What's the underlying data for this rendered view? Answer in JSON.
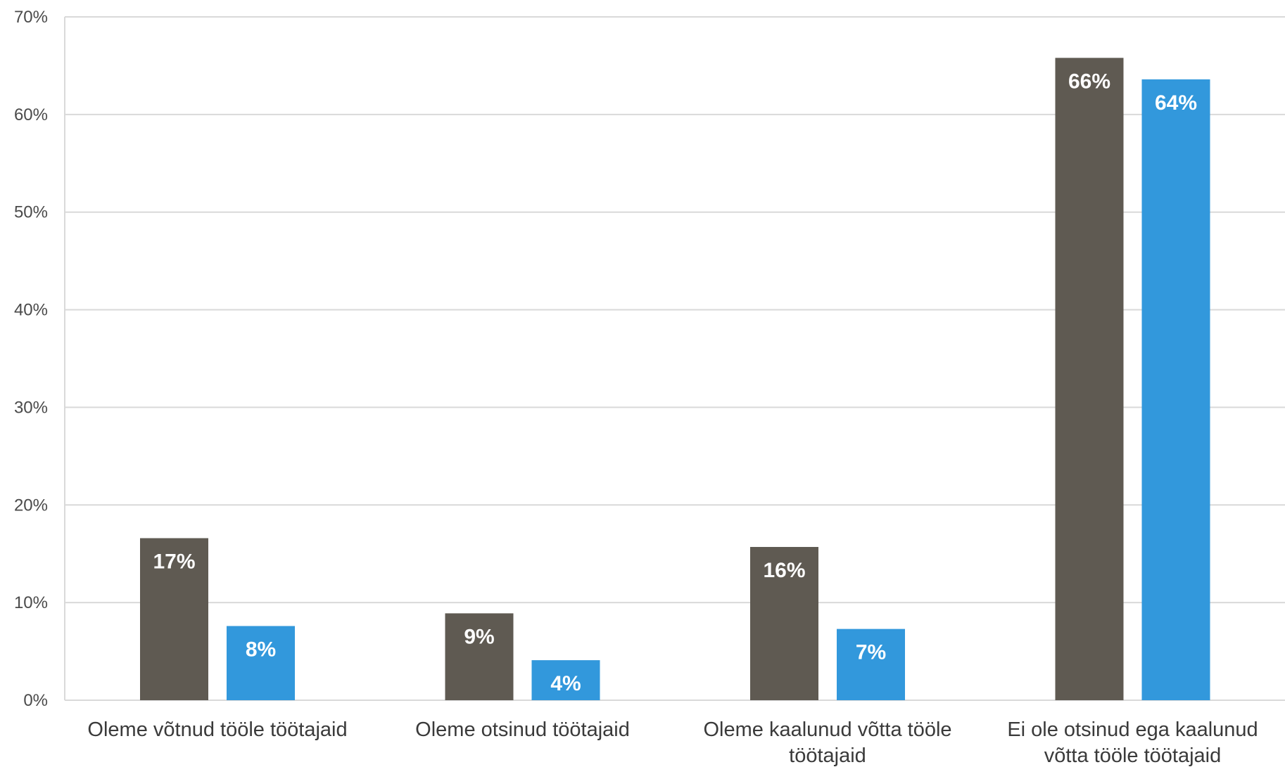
{
  "chart_data": {
    "type": "bar",
    "title": "",
    "xlabel": "",
    "ylabel": "",
    "ylim": [
      0,
      70
    ],
    "y_ticks": [
      "0%",
      "10%",
      "20%",
      "30%",
      "40%",
      "50%",
      "60%",
      "70%"
    ],
    "y_tick_values": [
      0,
      10,
      20,
      30,
      40,
      50,
      60,
      70
    ],
    "grid": true,
    "legend": "none",
    "categories": [
      [
        "Oleme võtnud tööle töötajaid"
      ],
      [
        "Oleme otsinud töötajaid"
      ],
      [
        "Oleme kaalunud võtta tööle",
        "töötajaid"
      ],
      [
        "Ei ole otsinud ega kaalunud",
        "võtta tööle töötajaid"
      ]
    ],
    "series": [
      {
        "color": "#5f5a52",
        "values": [
          16.6,
          8.9,
          15.7,
          65.8
        ],
        "labels": [
          "17%",
          "9%",
          "16%",
          "66%"
        ]
      },
      {
        "color": "#3298dc",
        "values": [
          7.6,
          4.1,
          7.3,
          63.6
        ],
        "labels": [
          "8%",
          "4%",
          "7%",
          "64%"
        ]
      }
    ]
  }
}
